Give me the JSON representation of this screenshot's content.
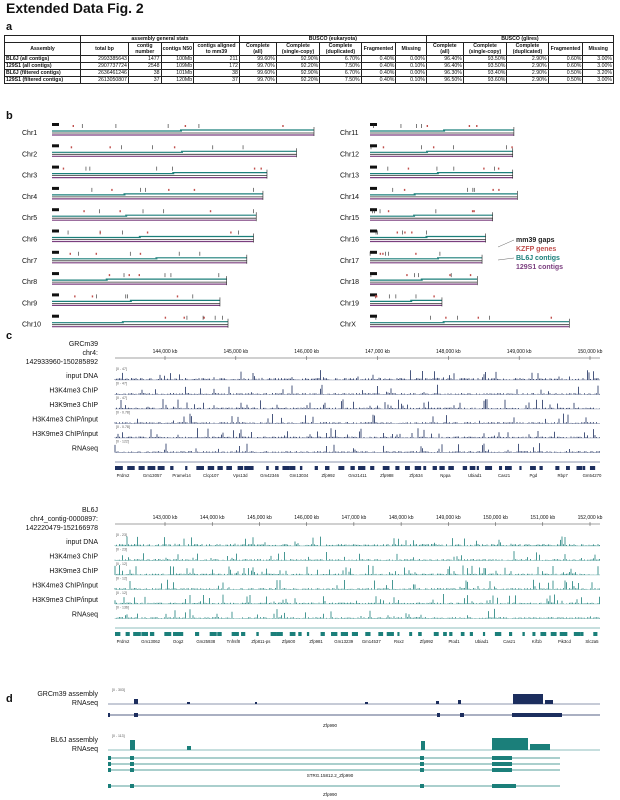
{
  "figure_title": "Extended Data Fig. 2",
  "panels": {
    "a": "a",
    "b": "b",
    "c": "c",
    "d": "d"
  },
  "table": {
    "group_headers": [
      "assembly general stats",
      "BUSCO (eukaryota)",
      "BUSCO (glires)"
    ],
    "columns": [
      "Assembly",
      "total bp",
      "contig number",
      "contigs N50",
      "contigs aligned to mm39",
      "Complete (all)",
      "Complete (single-copy)",
      "Complete (duplicated)",
      "Fragmented",
      "Missing",
      "Complete (all)",
      "Complete (single-copy)",
      "Complete (duplicated)",
      "Fragmented",
      "Missing"
    ],
    "rows": [
      [
        "BL6J (all contigs)",
        "2993385643",
        "1477",
        "100Mb",
        "211",
        "99.60%",
        "92.90%",
        "6.70%",
        "0.40%",
        "0.00%",
        "96.40%",
        "93.50%",
        "2.90%",
        "0.60%",
        "3.00%"
      ],
      [
        "129S1 (all contigs)",
        "2907737724",
        "2548",
        "109Mb",
        "172",
        "99.70%",
        "92.20%",
        "7.50%",
        "0.40%",
        "0.10%",
        "96.40%",
        "93.50%",
        "2.90%",
        "0.60%",
        "3.00%"
      ],
      [
        "BL6J (filtered contigs)",
        "2636461246",
        "38",
        "101Mb",
        "38",
        "99.60%",
        "92.90%",
        "6.70%",
        "0.40%",
        "0.00%",
        "96.30%",
        "93.40%",
        "2.90%",
        "0.50%",
        "3.20%"
      ],
      [
        "129S1 (filtered contigs)",
        "2613050807",
        "37",
        "120Mb",
        "37",
        "99.70%",
        "92.20%",
        "7.50%",
        "0.40%",
        "0.10%",
        "96.50%",
        "93.60%",
        "2.90%",
        "0.50%",
        "3.00%"
      ]
    ]
  },
  "chromosomes": {
    "left": [
      "Chr1",
      "Chr2",
      "Chr3",
      "Chr4",
      "Chr5",
      "Chr6",
      "Chr7",
      "Chr8",
      "Chr9",
      "Chr10"
    ],
    "right": [
      "Chr11",
      "Chr12",
      "Chr13",
      "Chr14",
      "Chr15",
      "Chr16",
      "Chr17",
      "Chr18",
      "Chr19",
      "ChrX"
    ],
    "legend": [
      {
        "label": "mm39 gaps",
        "color": "#222222"
      },
      {
        "label": "KZFP genes",
        "color": "#c0504d"
      },
      {
        "label": "BL6J contigs",
        "color": "#1b7f7a"
      },
      {
        "label": "129S1 contigs",
        "color": "#7b3f7f"
      }
    ]
  },
  "panel_c_top": {
    "title": "GRCm39",
    "subtitle": "chr4:",
    "range": "142933960-150285892",
    "ticks": [
      "144,000 kb",
      "145,000 kb",
      "146,000 kb",
      "147,000 kb",
      "148,000 kb",
      "149,000 kb",
      "150,000 kb"
    ],
    "tracks": [
      "input DNA",
      "H3K4me3 ChIP",
      "H3K9me3 ChIP",
      "H3K4me3 ChIP/input",
      "H3K9me3 ChIP/input",
      "RNAseq"
    ],
    "scales": [
      "[0 - 47]",
      "[0 - 47]",
      "[0 - 47]",
      "[0 - 0.78]",
      "[0 - 0.78]",
      "[0 - 122]"
    ],
    "genes": [
      "Prdm2",
      "Gm13057",
      "Pramel14",
      "Clcp107",
      "Vps13d",
      "Gm42346",
      "Gm13034",
      "Zfp992",
      "Gm21411",
      "Zfp988",
      "Zfp534",
      "Nppa",
      "Ubiad1",
      "Casz1",
      "Pgd",
      "Rbp7",
      "Gm54270"
    ]
  },
  "panel_c_bottom": {
    "title": "BL6J",
    "subtitle": "chr4_contig-0000897:",
    "range": "142220479-152166978",
    "ticks": [
      "143,000 kb",
      "144,000 kb",
      "145,000 kb",
      "146,000 kb",
      "147,000 kb",
      "148,000 kb",
      "149,000 kb",
      "150,000 kb",
      "151,000 kb",
      "152,000 kb"
    ],
    "tracks": [
      "input DNA",
      "H3K4me3 ChIP",
      "H3K9me3 ChIP",
      "H3K4me3 ChIP/input",
      "H3K9me3 ChIP/input",
      "RNAseq"
    ],
    "scales": [
      "[0 - 23]",
      "[0 - 23]",
      "[0 - 12]",
      "[0 - 12]",
      "[0 - 12]",
      "[0 - 136]"
    ],
    "genes": [
      "Prdm2",
      "Gm13062",
      "Oog2",
      "Gm25938",
      "Tnfrsf8",
      "Zfp811-ps",
      "Zfp600",
      "Zfp981",
      "Gm13239",
      "Gm14537",
      "Rsx2",
      "Zfp992",
      "Ptod1",
      "Ubiad1",
      "Casz1",
      "Kif1b",
      "Pik3cd",
      "Slc2a5"
    ]
  },
  "panel_d": {
    "top_label": [
      "GRCm39 assembly",
      "RNAseq"
    ],
    "top_scale": "[0 - 303]",
    "top_gene": "Zfp990",
    "bottom_label": [
      "BL6J assembly",
      "RNAseq"
    ],
    "bottom_scale": "[0 - 113]",
    "bottom_genes": [
      "STRG.15812.2_Zfp990",
      "Zfp990"
    ]
  }
}
